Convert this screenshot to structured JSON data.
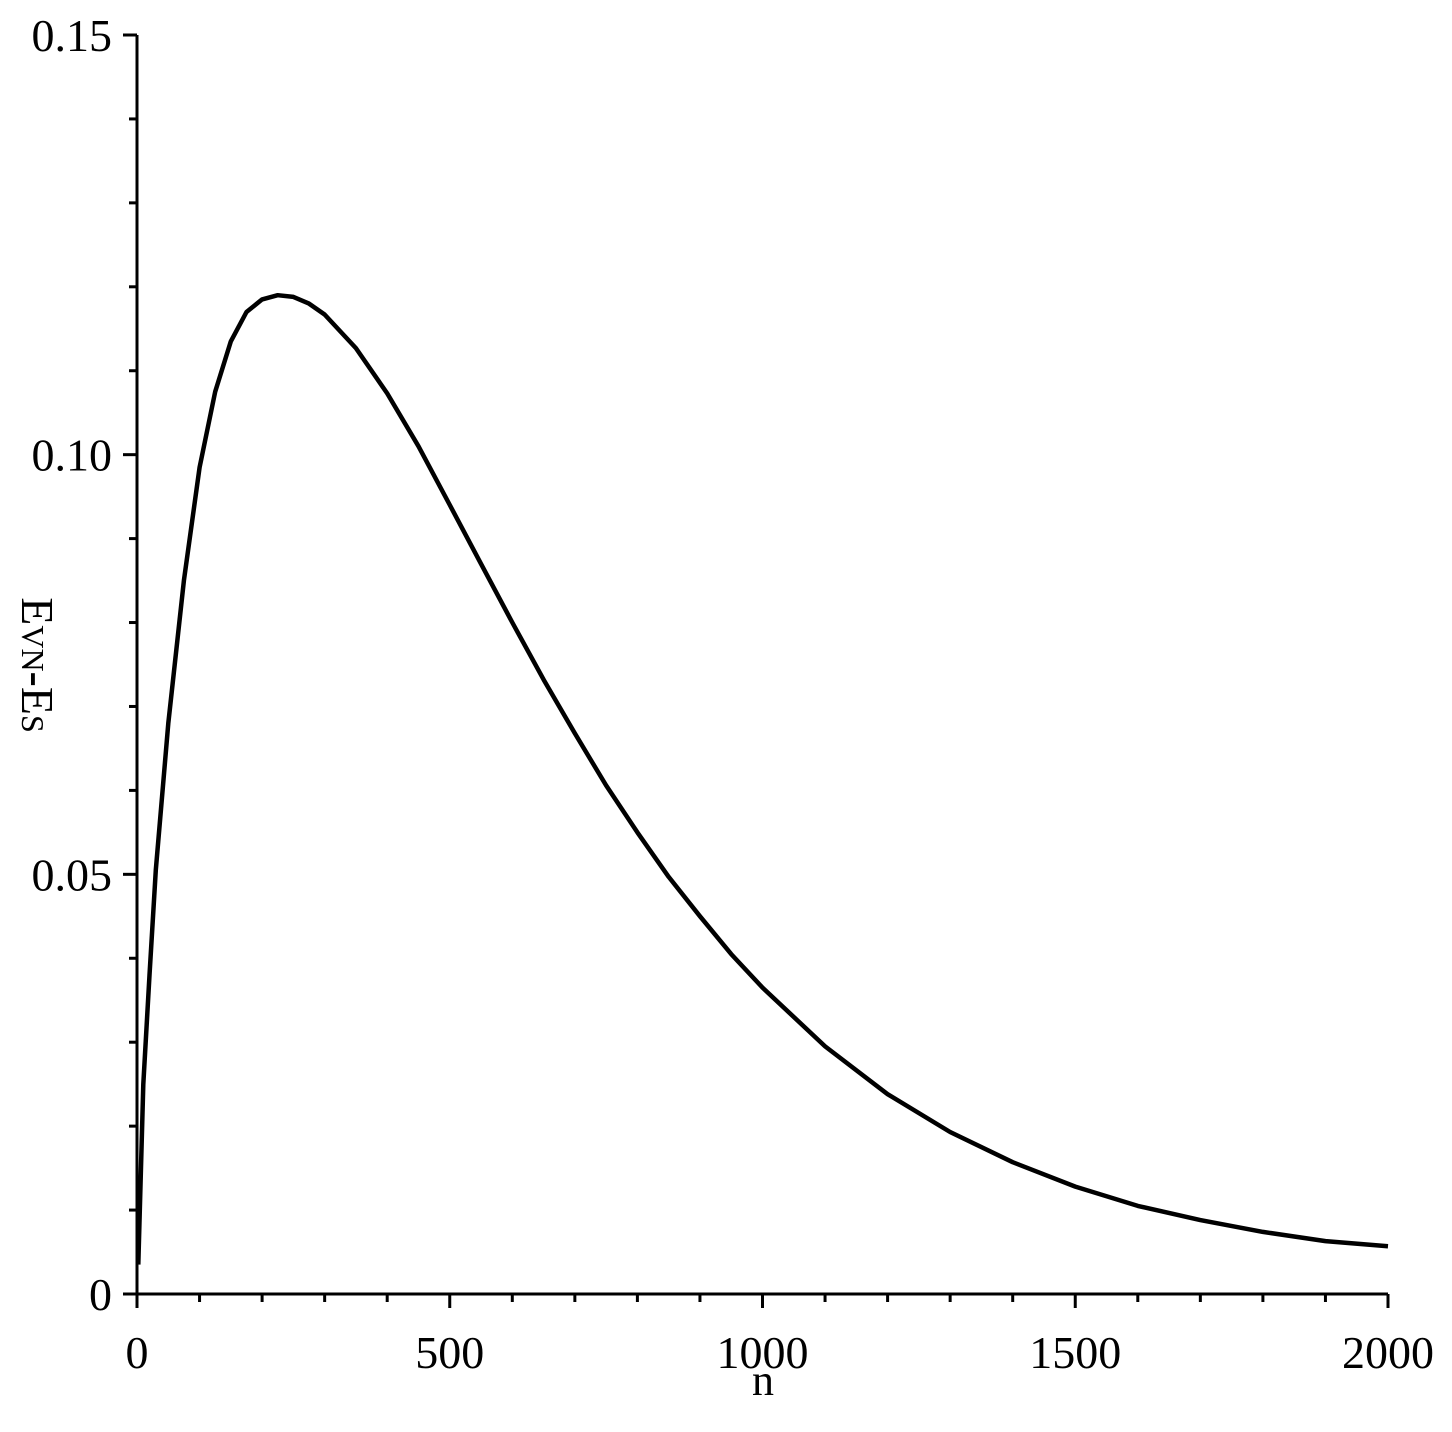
{
  "chart_data": {
    "type": "line",
    "title": "",
    "xlabel": "n",
    "ylabel": "E_VN-E_S",
    "ylabel_parts": {
      "e1": "E",
      "sub1": "VN",
      "dash": "-",
      "e2": "E",
      "sub2": "S"
    },
    "xlim": [
      0,
      2000
    ],
    "ylim": [
      0,
      0.15
    ],
    "grid": false,
    "legend": null,
    "x_ticks": [
      0,
      500,
      1000,
      1500,
      2000
    ],
    "x_tick_labels": [
      "0",
      "500",
      "1000",
      "1500",
      "2000"
    ],
    "x_minor_step": 100,
    "y_ticks": [
      0,
      0.05,
      0.1,
      0.15
    ],
    "y_tick_labels": [
      "0",
      "0.05",
      "0.10",
      "0.15"
    ],
    "y_minor_step": 0.01,
    "series": [
      {
        "name": "E_VN-E_S",
        "color": "#000000",
        "x": [
          2,
          10,
          20,
          30,
          50,
          75,
          100,
          125,
          150,
          175,
          200,
          225,
          250,
          275,
          300,
          350,
          400,
          450,
          500,
          550,
          600,
          650,
          700,
          750,
          800,
          850,
          900,
          950,
          1000,
          1100,
          1200,
          1300,
          1400,
          1500,
          1600,
          1700,
          1800,
          1900,
          2000
        ],
        "y": [
          0.0035,
          0.025,
          0.038,
          0.0505,
          0.068,
          0.085,
          0.0985,
          0.1075,
          0.1135,
          0.117,
          0.1185,
          0.119,
          0.1188,
          0.118,
          0.1167,
          0.1127,
          0.1073,
          0.101,
          0.094,
          0.087,
          0.08,
          0.0732,
          0.0668,
          0.0606,
          0.055,
          0.0497,
          0.045,
          0.0405,
          0.0365,
          0.0295,
          0.0238,
          0.0193,
          0.0157,
          0.0128,
          0.0105,
          0.0088,
          0.0074,
          0.0063,
          0.0057
        ]
      }
    ]
  }
}
